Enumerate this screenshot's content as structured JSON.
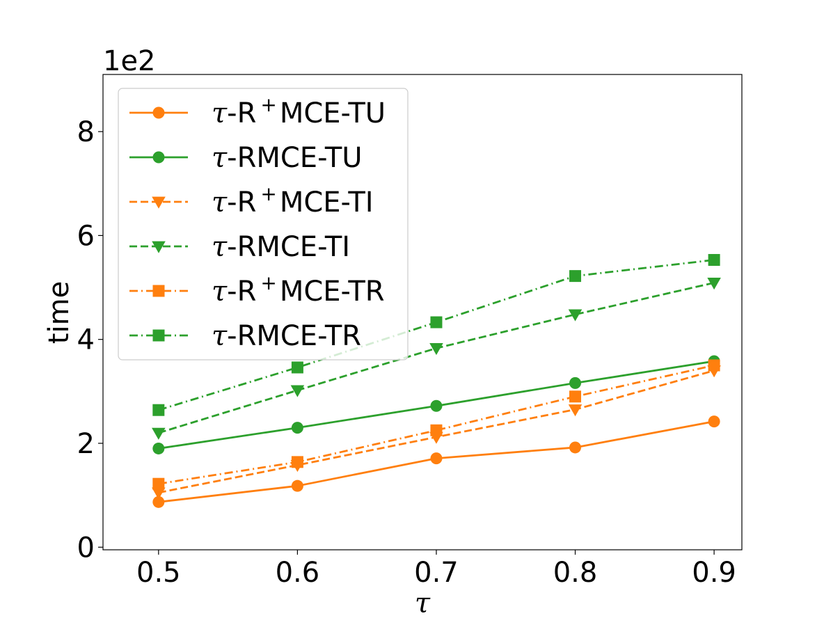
{
  "chart_data": {
    "type": "line",
    "title": "",
    "xlabel": "τ",
    "ylabel": "time",
    "y_multiplier_label": "1e2",
    "x": [
      0.5,
      0.6,
      0.7,
      0.8,
      0.9
    ],
    "x_tick_labels": [
      "0.5",
      "0.6",
      "0.7",
      "0.8",
      "0.9"
    ],
    "y_ticks": [
      0,
      2,
      4,
      6,
      8
    ],
    "y_tick_labels": [
      "0",
      "2",
      "4",
      "6",
      "8"
    ],
    "xlim": [
      0.46,
      0.92
    ],
    "ylim": [
      -0.05,
      9.1
    ],
    "legend_position": "top-left",
    "series": [
      {
        "name": "τ-R⁺MCE-TU",
        "label_prefix": "τ",
        "label_base": "-R",
        "label_sup": "+",
        "label_rest": "MCE-TU",
        "color": "#ff7f0e",
        "line_style": "solid",
        "marker": "circle",
        "values": [
          0.87,
          1.18,
          1.71,
          1.92,
          2.42
        ]
      },
      {
        "name": "τ-RMCE-TU",
        "label_prefix": "τ",
        "label_base": "-RMCE-TU",
        "label_sup": "",
        "label_rest": "",
        "color": "#2ca02c",
        "line_style": "solid",
        "marker": "circle",
        "values": [
          1.9,
          2.3,
          2.72,
          3.16,
          3.58
        ]
      },
      {
        "name": "τ-R⁺MCE-TI",
        "label_prefix": "τ",
        "label_base": "-R",
        "label_sup": "+",
        "label_rest": "MCE-TI",
        "color": "#ff7f0e",
        "line_style": "dashed",
        "marker": "triangle-down",
        "values": [
          1.05,
          1.58,
          2.12,
          2.65,
          3.4
        ]
      },
      {
        "name": "τ-RMCE-TI",
        "label_prefix": "τ",
        "label_base": "-RMCE-TI",
        "label_sup": "",
        "label_rest": "",
        "color": "#2ca02c",
        "line_style": "dashed",
        "marker": "triangle-down",
        "values": [
          2.2,
          3.02,
          3.83,
          4.48,
          5.09
        ]
      },
      {
        "name": "τ-R⁺MCE-TR",
        "label_prefix": "τ",
        "label_base": "-R",
        "label_sup": "+",
        "label_rest": "MCE-TR",
        "color": "#ff7f0e",
        "line_style": "dashdot",
        "marker": "square",
        "values": [
          1.22,
          1.64,
          2.25,
          2.9,
          3.5
        ]
      },
      {
        "name": "τ-RMCE-TR",
        "label_prefix": "τ",
        "label_base": "-RMCE-TR",
        "label_sup": "",
        "label_rest": "",
        "color": "#2ca02c",
        "line_style": "dashdot",
        "marker": "square",
        "values": [
          2.64,
          3.46,
          4.33,
          5.22,
          5.53
        ]
      }
    ]
  }
}
